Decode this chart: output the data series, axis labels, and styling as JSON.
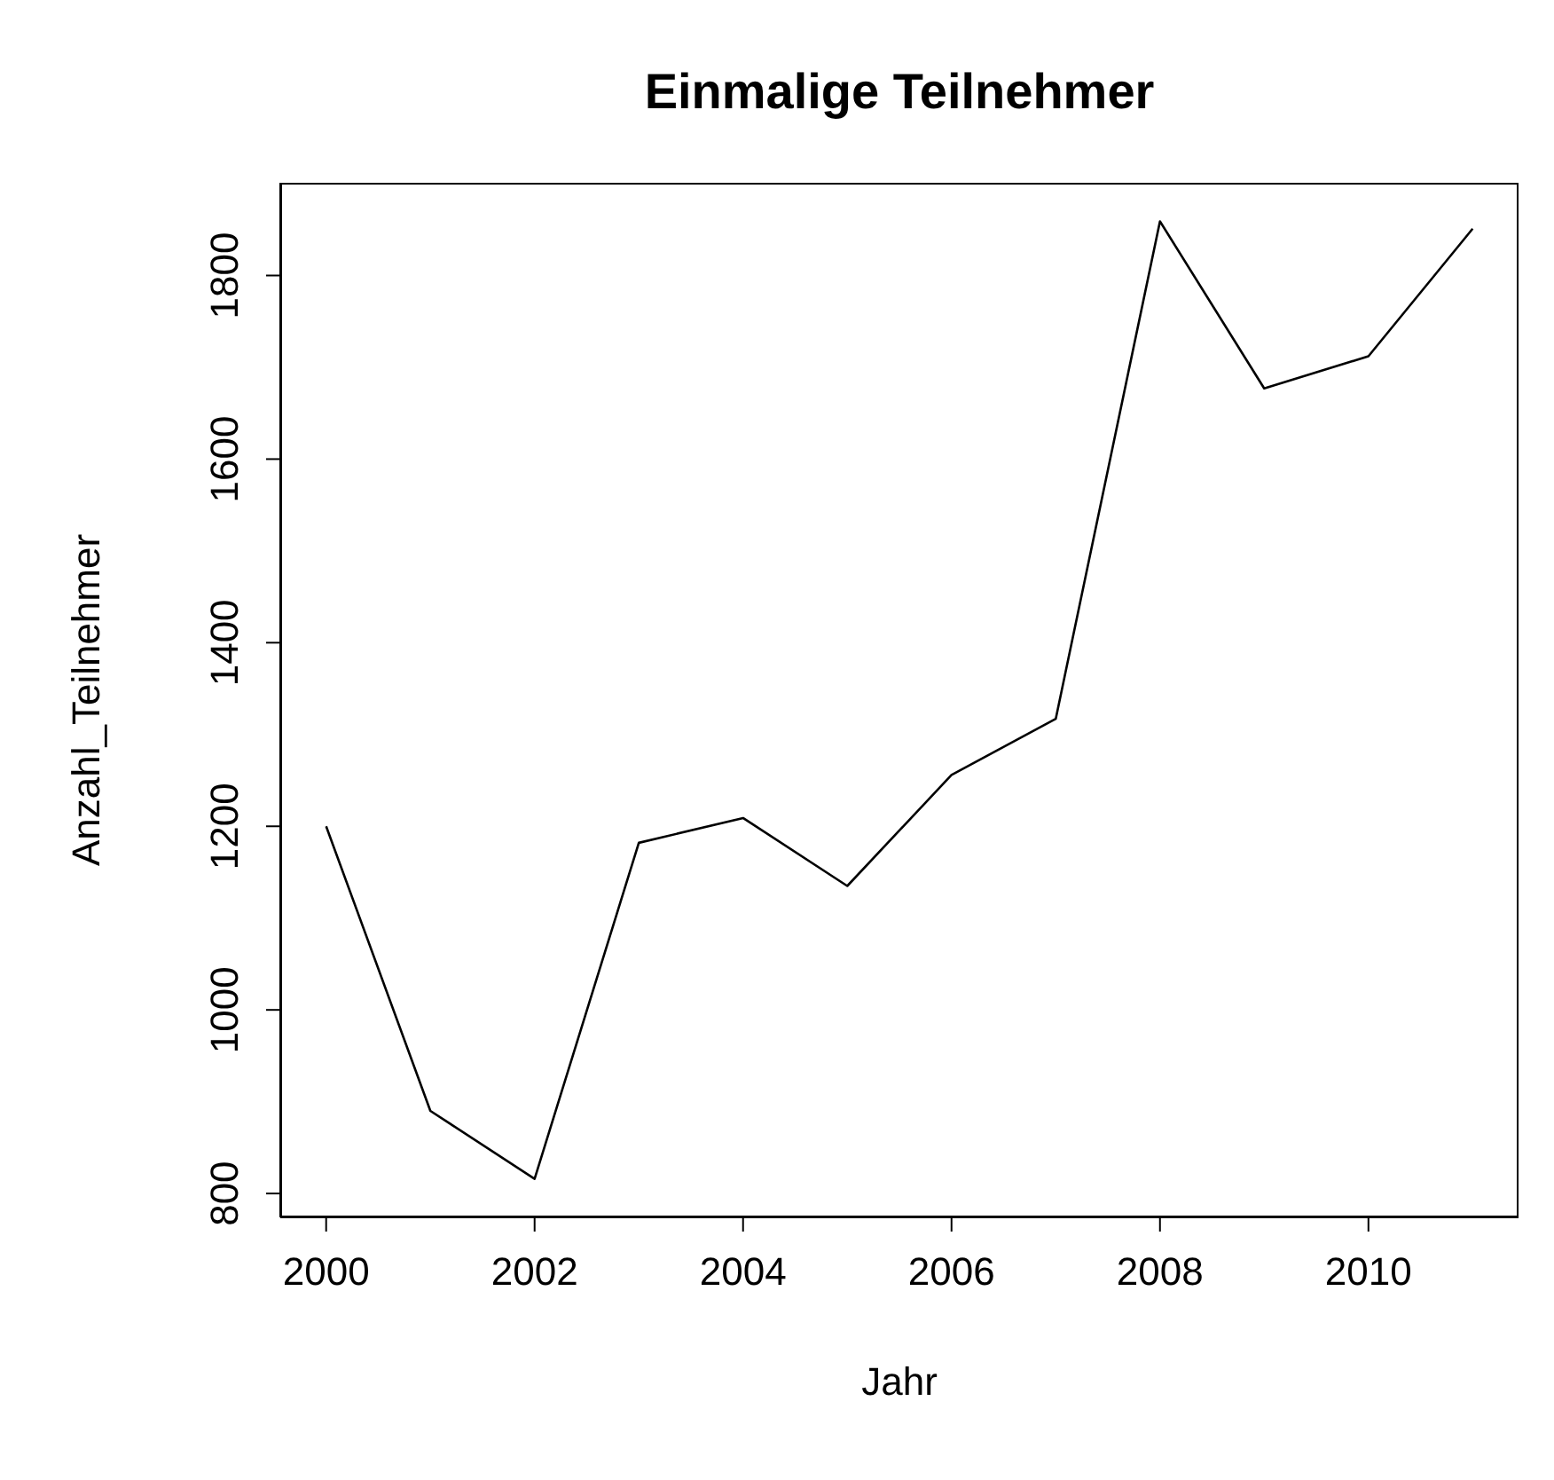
{
  "chart_data": {
    "type": "line",
    "title": "Einmalige Teilnehmer",
    "xlabel": "Jahr",
    "ylabel": "Anzahl_Teilnehmer",
    "x": [
      2000,
      2001,
      2002,
      2003,
      2004,
      2005,
      2006,
      2007,
      2008,
      2009,
      2010,
      2011
    ],
    "series": [
      {
        "color": "#000000",
        "values": [
          1200,
          890,
          816,
          1182,
          1209,
          1135,
          1256,
          1317,
          1859,
          1677,
          1712,
          1851
        ]
      }
    ],
    "xlim": [
      1999.56,
      2011.44
    ],
    "xticks": [
      2000,
      2002,
      2004,
      2006,
      2008,
      2010
    ],
    "ylim": [
      774,
      1901
    ],
    "yticks": [
      800,
      1000,
      1200,
      1400,
      1600,
      1800
    ],
    "grid": false,
    "legend": false,
    "marker": "none",
    "line_style": "solid"
  }
}
